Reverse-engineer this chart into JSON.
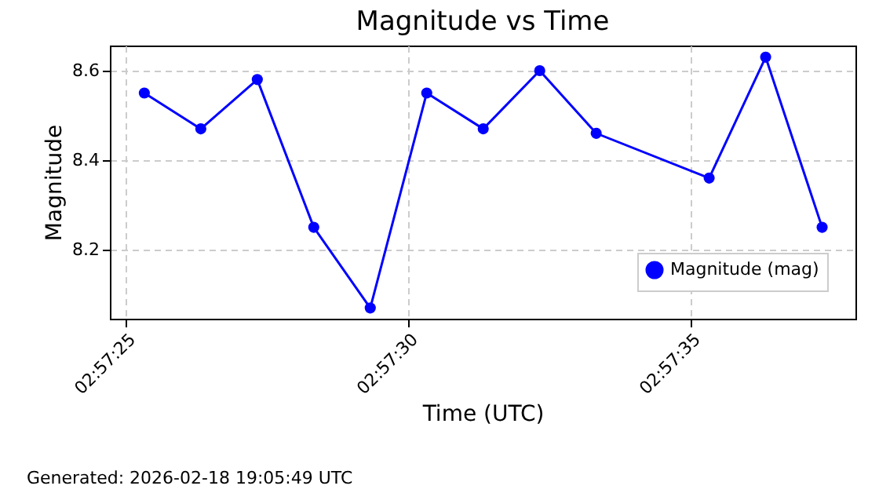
{
  "chart_data": {
    "type": "line",
    "title": "Magnitude vs Time",
    "xlabel": "Time (UTC)",
    "ylabel": "Magnitude",
    "x": [
      "2026-02-18T02:57:25.33",
      "2026-02-18T02:57:26.33",
      "2026-02-18T02:57:27.33",
      "2026-02-18T02:57:28.33",
      "2026-02-18T02:57:29.33",
      "2026-02-18T02:57:30.33",
      "2026-02-18T02:57:31.33",
      "2026-02-18T02:57:32.33",
      "2026-02-18T02:57:33.33",
      "2026-02-18T02:57:35.33",
      "2026-02-18T02:57:36.33",
      "2026-02-18T02:57:37.33"
    ],
    "series": [
      {
        "name": "Magnitude (mag)",
        "color": "#0000ff",
        "values": [
          8.55,
          8.47,
          8.58,
          8.25,
          8.07,
          8.55,
          8.47,
          8.6,
          8.46,
          8.36,
          8.63,
          8.25
        ]
      }
    ],
    "xlim": [
      "2026-02-18T02:57:24.72",
      "2026-02-18T02:57:37.92"
    ],
    "xticks": [
      {
        "value": "2026-02-18T02:57:25",
        "label": "02:57:25"
      },
      {
        "value": "2026-02-18T02:57:30",
        "label": "02:57:30"
      },
      {
        "value": "2026-02-18T02:57:35",
        "label": "02:57:35"
      }
    ],
    "ylim": [
      8.046,
      8.656
    ],
    "yticks": [
      {
        "value": 8.2,
        "label": "8.2"
      },
      {
        "value": 8.4,
        "label": "8.4"
      },
      {
        "value": 8.6,
        "label": "8.6"
      }
    ],
    "grid": true,
    "legend": "bottom right",
    "marker": "circle",
    "line_style": "solid",
    "annotations": [
      "Generated: 2026-02-18 19:05:49 UTC"
    ]
  }
}
